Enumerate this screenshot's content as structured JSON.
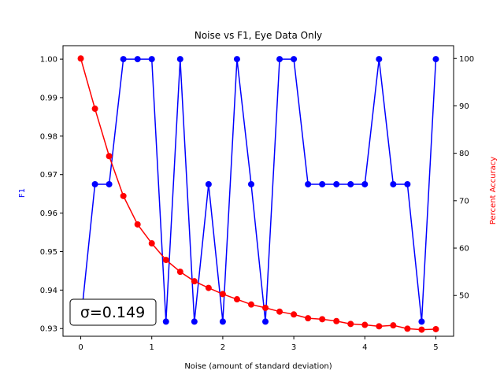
{
  "chart_data": {
    "type": "line",
    "title": "Noise vs F1, Eye Data Only",
    "xlabel": "Noise (amount of standard deviation)",
    "ylabel_left": "F1",
    "ylabel_right": "Percent Accuracy",
    "xlim": [
      -0.25,
      5.25
    ],
    "ylim_left": [
      0.928,
      1.0035
    ],
    "ylim_right": [
      41.4,
      102.7
    ],
    "xticks": [
      0,
      1,
      2,
      3,
      4,
      5
    ],
    "xtick_labels": [
      "0",
      "1",
      "2",
      "3",
      "4",
      "5"
    ],
    "yticks_left": [
      0.93,
      0.94,
      0.95,
      0.96,
      0.97,
      0.98,
      0.99,
      1.0
    ],
    "ytick_labels_left": [
      "0.93",
      "0.94",
      "0.95",
      "0.96",
      "0.97",
      "0.98",
      "0.99",
      "1.00"
    ],
    "yticks_right": [
      50,
      60,
      70,
      80,
      90,
      100
    ],
    "ytick_labels_right": [
      "50",
      "60",
      "70",
      "80",
      "90",
      "100"
    ],
    "grid": false,
    "annotation": "σ=0.149",
    "series": [
      {
        "axis": "left",
        "color": "#0000ff",
        "x": [
          0,
          0.2,
          0.4,
          0.6,
          0.8,
          1.0,
          1.2,
          1.4,
          1.6,
          1.8,
          2.0,
          2.2,
          2.4,
          2.6,
          2.8,
          3.0,
          3.2,
          3.4,
          3.6,
          3.8,
          4.0,
          4.2,
          4.4,
          4.6,
          4.8,
          5.0
        ],
        "values": [
          0.9318,
          0.9675,
          0.9675,
          1.0,
          1.0,
          1.0,
          0.9318,
          1.0,
          0.9318,
          0.9675,
          0.9318,
          1.0,
          0.9675,
          0.9318,
          1.0,
          1.0,
          0.9675,
          0.9675,
          0.9675,
          0.9675,
          0.9675,
          1.0,
          0.9675,
          0.9675,
          0.9318,
          1.0
        ]
      },
      {
        "axis": "right",
        "color": "#ff0000",
        "x": [
          0,
          0.2,
          0.4,
          0.6,
          0.8,
          1.0,
          1.2,
          1.4,
          1.6,
          1.8,
          2.0,
          2.2,
          2.4,
          2.6,
          2.8,
          3.0,
          3.2,
          3.4,
          3.6,
          3.8,
          4.0,
          4.2,
          4.4,
          4.6,
          4.8,
          5.0
        ],
        "values": [
          100,
          89.4,
          79.4,
          71.0,
          65.0,
          61.0,
          57.5,
          55.0,
          53.0,
          51.6,
          50.3,
          49.2,
          48.1,
          47.4,
          46.6,
          46.0,
          45.2,
          45.0,
          44.6,
          44.0,
          43.8,
          43.5,
          43.7,
          43.0,
          42.8,
          42.9
        ]
      }
    ]
  }
}
